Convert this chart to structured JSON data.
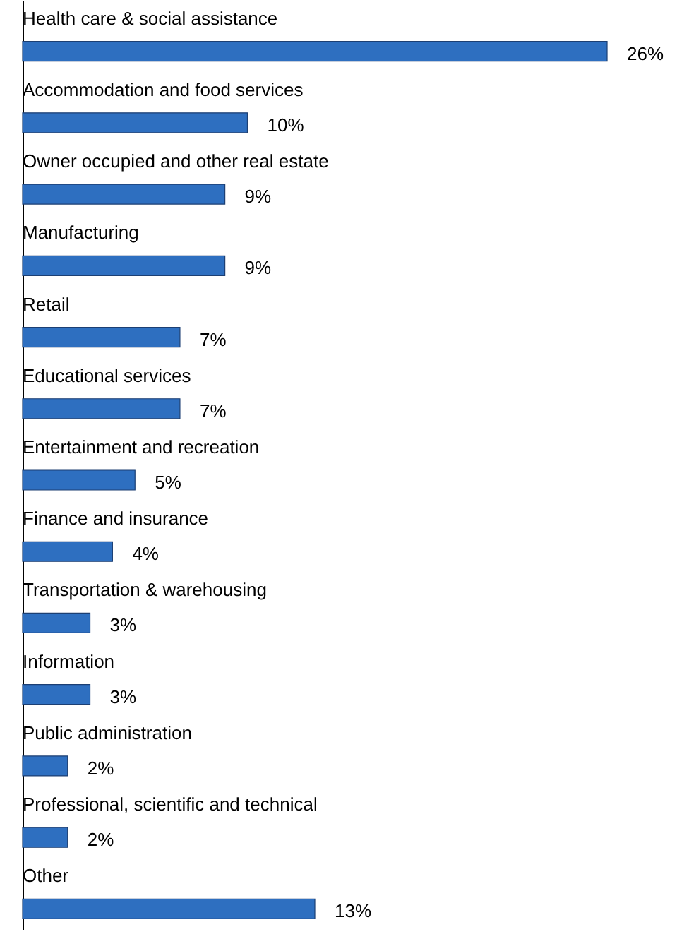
{
  "chart_data": {
    "type": "bar",
    "orientation": "horizontal",
    "categories": [
      "Health care & social assistance",
      "Accommodation and food services",
      "Owner occupied and other real estate",
      "Manufacturing",
      "Retail",
      "Educational services",
      "Entertainment and recreation",
      "Finance and insurance",
      "Transportation & warehousing",
      "Information",
      "Public administration",
      "Professional, scientific and technical",
      "Other"
    ],
    "values": [
      26,
      10,
      9,
      9,
      7,
      7,
      5,
      4,
      3,
      3,
      2,
      2,
      13
    ],
    "value_labels": [
      "26%",
      "10%",
      "9%",
      "9%",
      "7%",
      "7%",
      "5%",
      "4%",
      "3%",
      "3%",
      "2%",
      "2%",
      "13%"
    ],
    "color": "#2e6fc0"
  }
}
